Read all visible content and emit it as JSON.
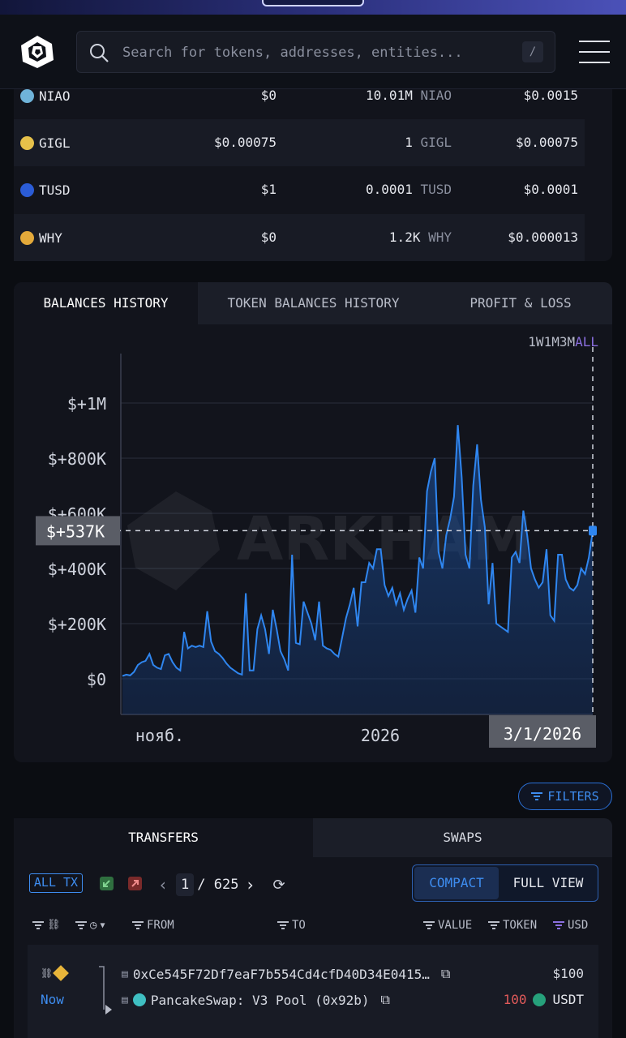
{
  "header": {
    "search_placeholder": "Search for tokens, addresses, entities...",
    "search_shortcut": "/"
  },
  "tokens": [
    {
      "symbol": "NIAO",
      "price": "$0",
      "amount": "10.01M",
      "unit": "NIAO",
      "value": "$0.0015",
      "color": "#6fb3d9"
    },
    {
      "symbol": "GIGL",
      "price": "$0.00075",
      "amount": "1",
      "unit": "GIGL",
      "value": "$0.00075",
      "color": "#e6c14a"
    },
    {
      "symbol": "TUSD",
      "price": "$1",
      "amount": "0.0001",
      "unit": "TUSD",
      "value": "$0.0001",
      "color": "#2b5cd6"
    },
    {
      "symbol": "WHY",
      "price": "$0",
      "amount": "1.2K",
      "unit": "WHY",
      "value": "$0.000013",
      "color": "#e3a93a"
    }
  ],
  "chart_tabs": [
    "BALANCES HISTORY",
    "TOKEN BALANCES HISTORY",
    "PROFIT & LOSS"
  ],
  "ranges": [
    "1W",
    "1M",
    "3M",
    "ALL"
  ],
  "chart_data": {
    "type": "area",
    "ylabels": [
      "$+1M",
      "$+800K",
      "$+600K",
      "$+400K",
      "$+200K",
      "$0"
    ],
    "xlabels": [
      "нояб.",
      "2026"
    ],
    "cursor_value": "$+537K",
    "cursor_date": "3/1/2026",
    "ylim": [
      -130000,
      1180000
    ],
    "values": [
      10000,
      15000,
      12000,
      25000,
      50000,
      60000,
      65000,
      90000,
      50000,
      40000,
      35000,
      85000,
      90000,
      60000,
      40000,
      30000,
      170000,
      110000,
      120000,
      115000,
      120000,
      115000,
      245000,
      135000,
      100000,
      90000,
      75000,
      55000,
      40000,
      30000,
      20000,
      15000,
      310000,
      30000,
      30000,
      180000,
      230000,
      180000,
      90000,
      250000,
      180000,
      100000,
      70000,
      30000,
      450000,
      130000,
      125000,
      280000,
      240000,
      200000,
      140000,
      280000,
      120000,
      110000,
      105000,
      90000,
      80000,
      150000,
      220000,
      270000,
      330000,
      190000,
      350000,
      350000,
      420000,
      400000,
      470000,
      470000,
      340000,
      300000,
      330000,
      270000,
      310000,
      250000,
      290000,
      320000,
      240000,
      440000,
      400000,
      680000,
      750000,
      800000,
      460000,
      400000,
      520000,
      580000,
      660000,
      920000,
      730000,
      450000,
      400000,
      700000,
      850000,
      650000,
      550000,
      270000,
      420000,
      200000,
      190000,
      180000,
      170000,
      440000,
      460000,
      420000,
      610000,
      520000,
      400000,
      360000,
      330000,
      350000,
      470000,
      230000,
      210000,
      450000,
      450000,
      360000,
      330000,
      320000,
      340000,
      400000,
      380000,
      440000,
      537000
    ],
    "grid": true
  },
  "watermark": "ARKHAM",
  "filters_label": "FILTERS",
  "tx": {
    "tabs": [
      "TRANSFERS",
      "SWAPS"
    ],
    "all_tx": "ALL TX",
    "page_current": "1",
    "page_total": "/ 625",
    "compact": "COMPACT",
    "full_view": "FULL VIEW",
    "columns": {
      "from": "FROM",
      "to": "TO",
      "value": "VALUE",
      "token": "TOKEN",
      "usd": "USD"
    },
    "row": {
      "time": "Now",
      "from": "0xCe545F72Df7eaF7b554Cd4cfD40D34E0415…",
      "to": "PancakeSwap: V3 Pool (0x92b)",
      "usd": "$100",
      "amount": "100",
      "token": "USDT"
    }
  }
}
